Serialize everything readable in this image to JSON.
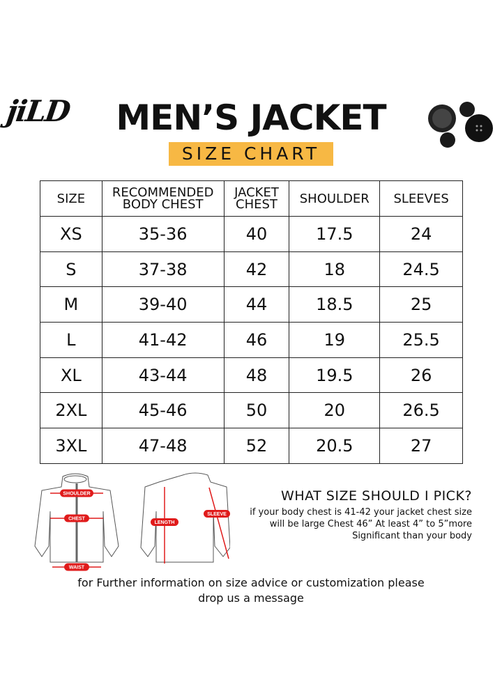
{
  "brand": {
    "logo_text": "jiLD"
  },
  "header": {
    "title": "MEN’S JACKET",
    "subtitle": "SIZE CHART"
  },
  "table": {
    "columns": [
      [
        "SIZE"
      ],
      [
        "RECOMMENDED",
        "BODY CHEST"
      ],
      [
        "JACKET",
        "CHEST"
      ],
      [
        "SHOULDER"
      ],
      [
        "SLEEVES"
      ]
    ],
    "rows": [
      [
        "XS",
        "35-36",
        "40",
        "17.5",
        "24"
      ],
      [
        "S",
        "37-38",
        "42",
        "18",
        "24.5"
      ],
      [
        "M",
        "39-40",
        "44",
        "18.5",
        "25"
      ],
      [
        "L",
        "41-42",
        "46",
        "19",
        "25.5"
      ],
      [
        "XL",
        "43-44",
        "48",
        "19.5",
        "26"
      ],
      [
        "2XL",
        "45-46",
        "50",
        "20",
        "26.5"
      ],
      [
        "3XL",
        "47-48",
        "52",
        "20.5",
        "27"
      ]
    ]
  },
  "diagram": {
    "labels": {
      "shoulder": "SHOULDER",
      "chest": "CHEST",
      "waist": "WAIST",
      "length": "LENGTH",
      "sleeve": "SLEEVE"
    },
    "accent": "#e01b1b"
  },
  "advice": {
    "heading": "WHAT SIZE SHOULD I PICK?",
    "lines": [
      "if your body chest is 41-42 your jacket chest size",
      "will be large Chest 46” At least 4” to 5”more",
      "Significant than your body"
    ]
  },
  "footer": {
    "lines": [
      "for Further information on size advice or customization please",
      "drop us a message"
    ]
  },
  "colors": {
    "highlight": "#f7b844"
  }
}
